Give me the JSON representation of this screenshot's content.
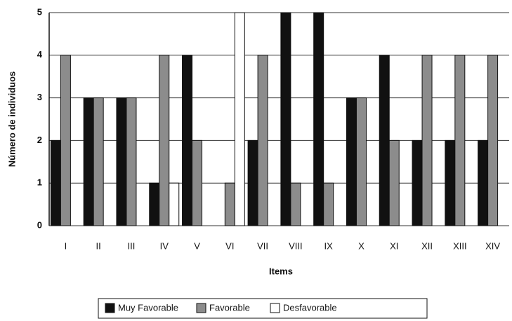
{
  "chart_data": {
    "type": "bar",
    "xlabel": "Items",
    "ylabel": "Número de individuos",
    "categories": [
      "I",
      "II",
      "III",
      "IV",
      "V",
      "VI",
      "VII",
      "VIII",
      "IX",
      "X",
      "XI",
      "XII",
      "XIII",
      "XIV"
    ],
    "series": [
      {
        "name": "Muy Favorable",
        "color": "#111111",
        "values": [
          2,
          3,
          3,
          1,
          4,
          0,
          2,
          5,
          5,
          3,
          4,
          2,
          2,
          2
        ]
      },
      {
        "name": "Favorable",
        "color": "#8c8c8c",
        "values": [
          4,
          3,
          3,
          4,
          2,
          1,
          4,
          1,
          1,
          3,
          2,
          4,
          4,
          4
        ]
      },
      {
        "name": "Desfavorable",
        "color": "#ffffff",
        "values": [
          0,
          0,
          0,
          1,
          0,
          5,
          0,
          0,
          0,
          0,
          0,
          0,
          0,
          0
        ]
      }
    ],
    "ylim": [
      0,
      5
    ],
    "yticks": [
      0,
      1,
      2,
      3,
      4,
      5
    ],
    "grid": true,
    "legend": "bottom"
  }
}
